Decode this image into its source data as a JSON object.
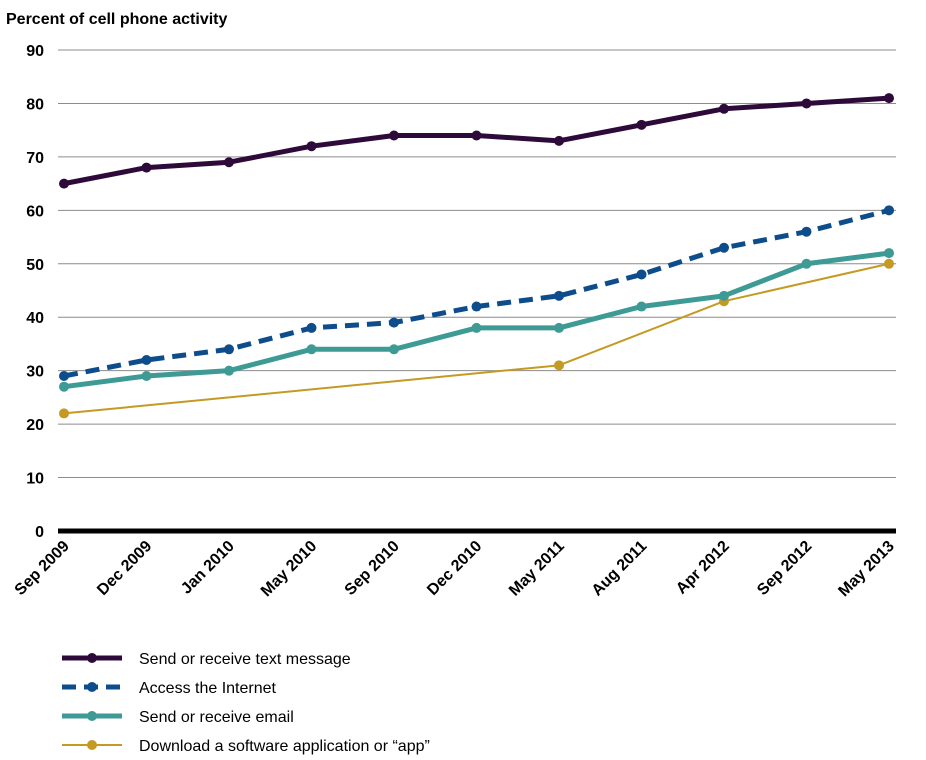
{
  "chart_data": {
    "type": "line",
    "title": "Percent of cell phone activity",
    "xlabel": "",
    "ylabel": "",
    "ylim": [
      0,
      90
    ],
    "yticks": [
      "0",
      "10",
      "20",
      "30",
      "40",
      "50",
      "60",
      "70",
      "80",
      "90"
    ],
    "categories": [
      "Sep 2009",
      "Dec 2009",
      "Jan 2010",
      "May 2010",
      "Sep 2010",
      "Dec 2010",
      "May 2011",
      "Aug 2011",
      "Apr 2012",
      "Sep 2012",
      "May 2013"
    ],
    "grid": true,
    "legend_position": "bottom",
    "series": [
      {
        "name": "Send or receive text message",
        "color": "#2e0a3a",
        "style": "solid-thick",
        "values": [
          65,
          68,
          69,
          72,
          74,
          74,
          73,
          76,
          79,
          80,
          81
        ]
      },
      {
        "name": "Access the Internet",
        "color": "#0e4d8c",
        "style": "dashed",
        "values": [
          29,
          32,
          34,
          38,
          39,
          42,
          44,
          48,
          53,
          56,
          60
        ]
      },
      {
        "name": "Send or receive email",
        "color": "#3e9a94",
        "style": "solid-thick",
        "values": [
          27,
          29,
          30,
          34,
          34,
          38,
          38,
          42,
          44,
          50,
          52
        ]
      },
      {
        "name": "Download a software application or “app”",
        "color": "#c49a22",
        "style": "solid-thin",
        "values": [
          22,
          null,
          null,
          null,
          null,
          null,
          31,
          null,
          43,
          null,
          50
        ]
      }
    ]
  }
}
